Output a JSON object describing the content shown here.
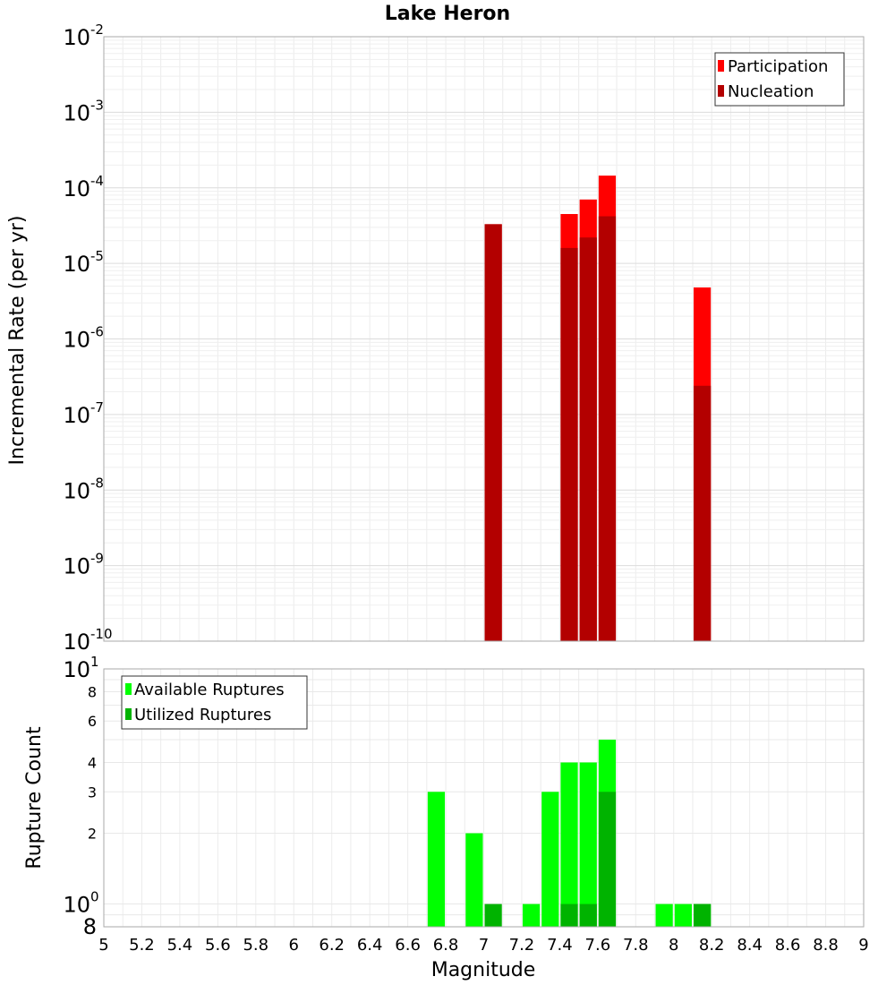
{
  "chart_data": [
    {
      "type": "bar",
      "title": "Lake Heron",
      "ylabel": "Incremental Rate (per yr)",
      "xlabel": "",
      "xlim": [
        5,
        9
      ],
      "ylim": [
        1e-10,
        0.01
      ],
      "yscale": "log",
      "grid": true,
      "legend_position": "top-right",
      "y_ticks": [
        {
          "base": "10",
          "exp": "-10"
        },
        {
          "base": "10",
          "exp": "-9"
        },
        {
          "base": "10",
          "exp": "-8"
        },
        {
          "base": "10",
          "exp": "-7"
        },
        {
          "base": "10",
          "exp": "-6"
        },
        {
          "base": "10",
          "exp": "-5"
        },
        {
          "base": "10",
          "exp": "-4"
        },
        {
          "base": "10",
          "exp": "-3"
        },
        {
          "base": "10",
          "exp": "-2"
        }
      ],
      "series": [
        {
          "name": "Participation",
          "color": "#ff0000",
          "points": [
            {
              "x": 7.05,
              "y": 3.3e-05
            },
            {
              "x": 7.45,
              "y": 4.5e-05
            },
            {
              "x": 7.55,
              "y": 7e-05
            },
            {
              "x": 7.65,
              "y": 0.000145
            },
            {
              "x": 8.15,
              "y": 4.8e-06
            }
          ]
        },
        {
          "name": "Nucleation",
          "color": "#b30000",
          "points": [
            {
              "x": 7.05,
              "y": 3.3e-05
            },
            {
              "x": 7.45,
              "y": 1.6e-05
            },
            {
              "x": 7.55,
              "y": 2.2e-05
            },
            {
              "x": 7.65,
              "y": 4.2e-05
            },
            {
              "x": 8.15,
              "y": 2.4e-07
            }
          ]
        }
      ]
    },
    {
      "type": "bar",
      "title": "",
      "ylabel": "Rupture Count",
      "xlabel": "Magnitude",
      "xlim": [
        5,
        9
      ],
      "ylim": [
        0.8,
        10
      ],
      "yscale": "log",
      "grid": true,
      "legend_position": "top-left",
      "x_ticks": [
        "5",
        "5.2",
        "5.4",
        "5.6",
        "5.8",
        "6",
        "6.2",
        "6.4",
        "6.6",
        "6.8",
        "7",
        "7.2",
        "7.4",
        "7.6",
        "7.8",
        "8",
        "8.2",
        "8.4",
        "8.6",
        "8.8",
        "9"
      ],
      "y_ticks_small": [
        {
          "label": "8",
          "value": 8
        },
        {
          "label": "6",
          "value": 6
        },
        {
          "label": "4",
          "value": 4
        },
        {
          "label": "3",
          "value": 3
        },
        {
          "label": "2",
          "value": 2
        }
      ],
      "y_ticks_big": [
        {
          "base": "10",
          "exp": "1",
          "value": 10
        },
        {
          "base": "10",
          "exp": "0",
          "value": 1
        }
      ],
      "y_bottom_label": "8",
      "series": [
        {
          "name": "Available Ruptures",
          "color": "#00ff00",
          "points": [
            {
              "x": 6.75,
              "y": 3
            },
            {
              "x": 6.95,
              "y": 2
            },
            {
              "x": 7.25,
              "y": 1
            },
            {
              "x": 7.35,
              "y": 3
            },
            {
              "x": 7.45,
              "y": 4
            },
            {
              "x": 7.55,
              "y": 4
            },
            {
              "x": 7.65,
              "y": 5
            },
            {
              "x": 7.95,
              "y": 1
            },
            {
              "x": 8.05,
              "y": 1
            },
            {
              "x": 8.15,
              "y": 1
            }
          ]
        },
        {
          "name": "Utilized Ruptures",
          "color": "#00b300",
          "points": [
            {
              "x": 7.05,
              "y": 1
            },
            {
              "x": 7.45,
              "y": 1
            },
            {
              "x": 7.55,
              "y": 1
            },
            {
              "x": 7.65,
              "y": 3
            },
            {
              "x": 8.15,
              "y": 1
            }
          ]
        }
      ]
    }
  ]
}
